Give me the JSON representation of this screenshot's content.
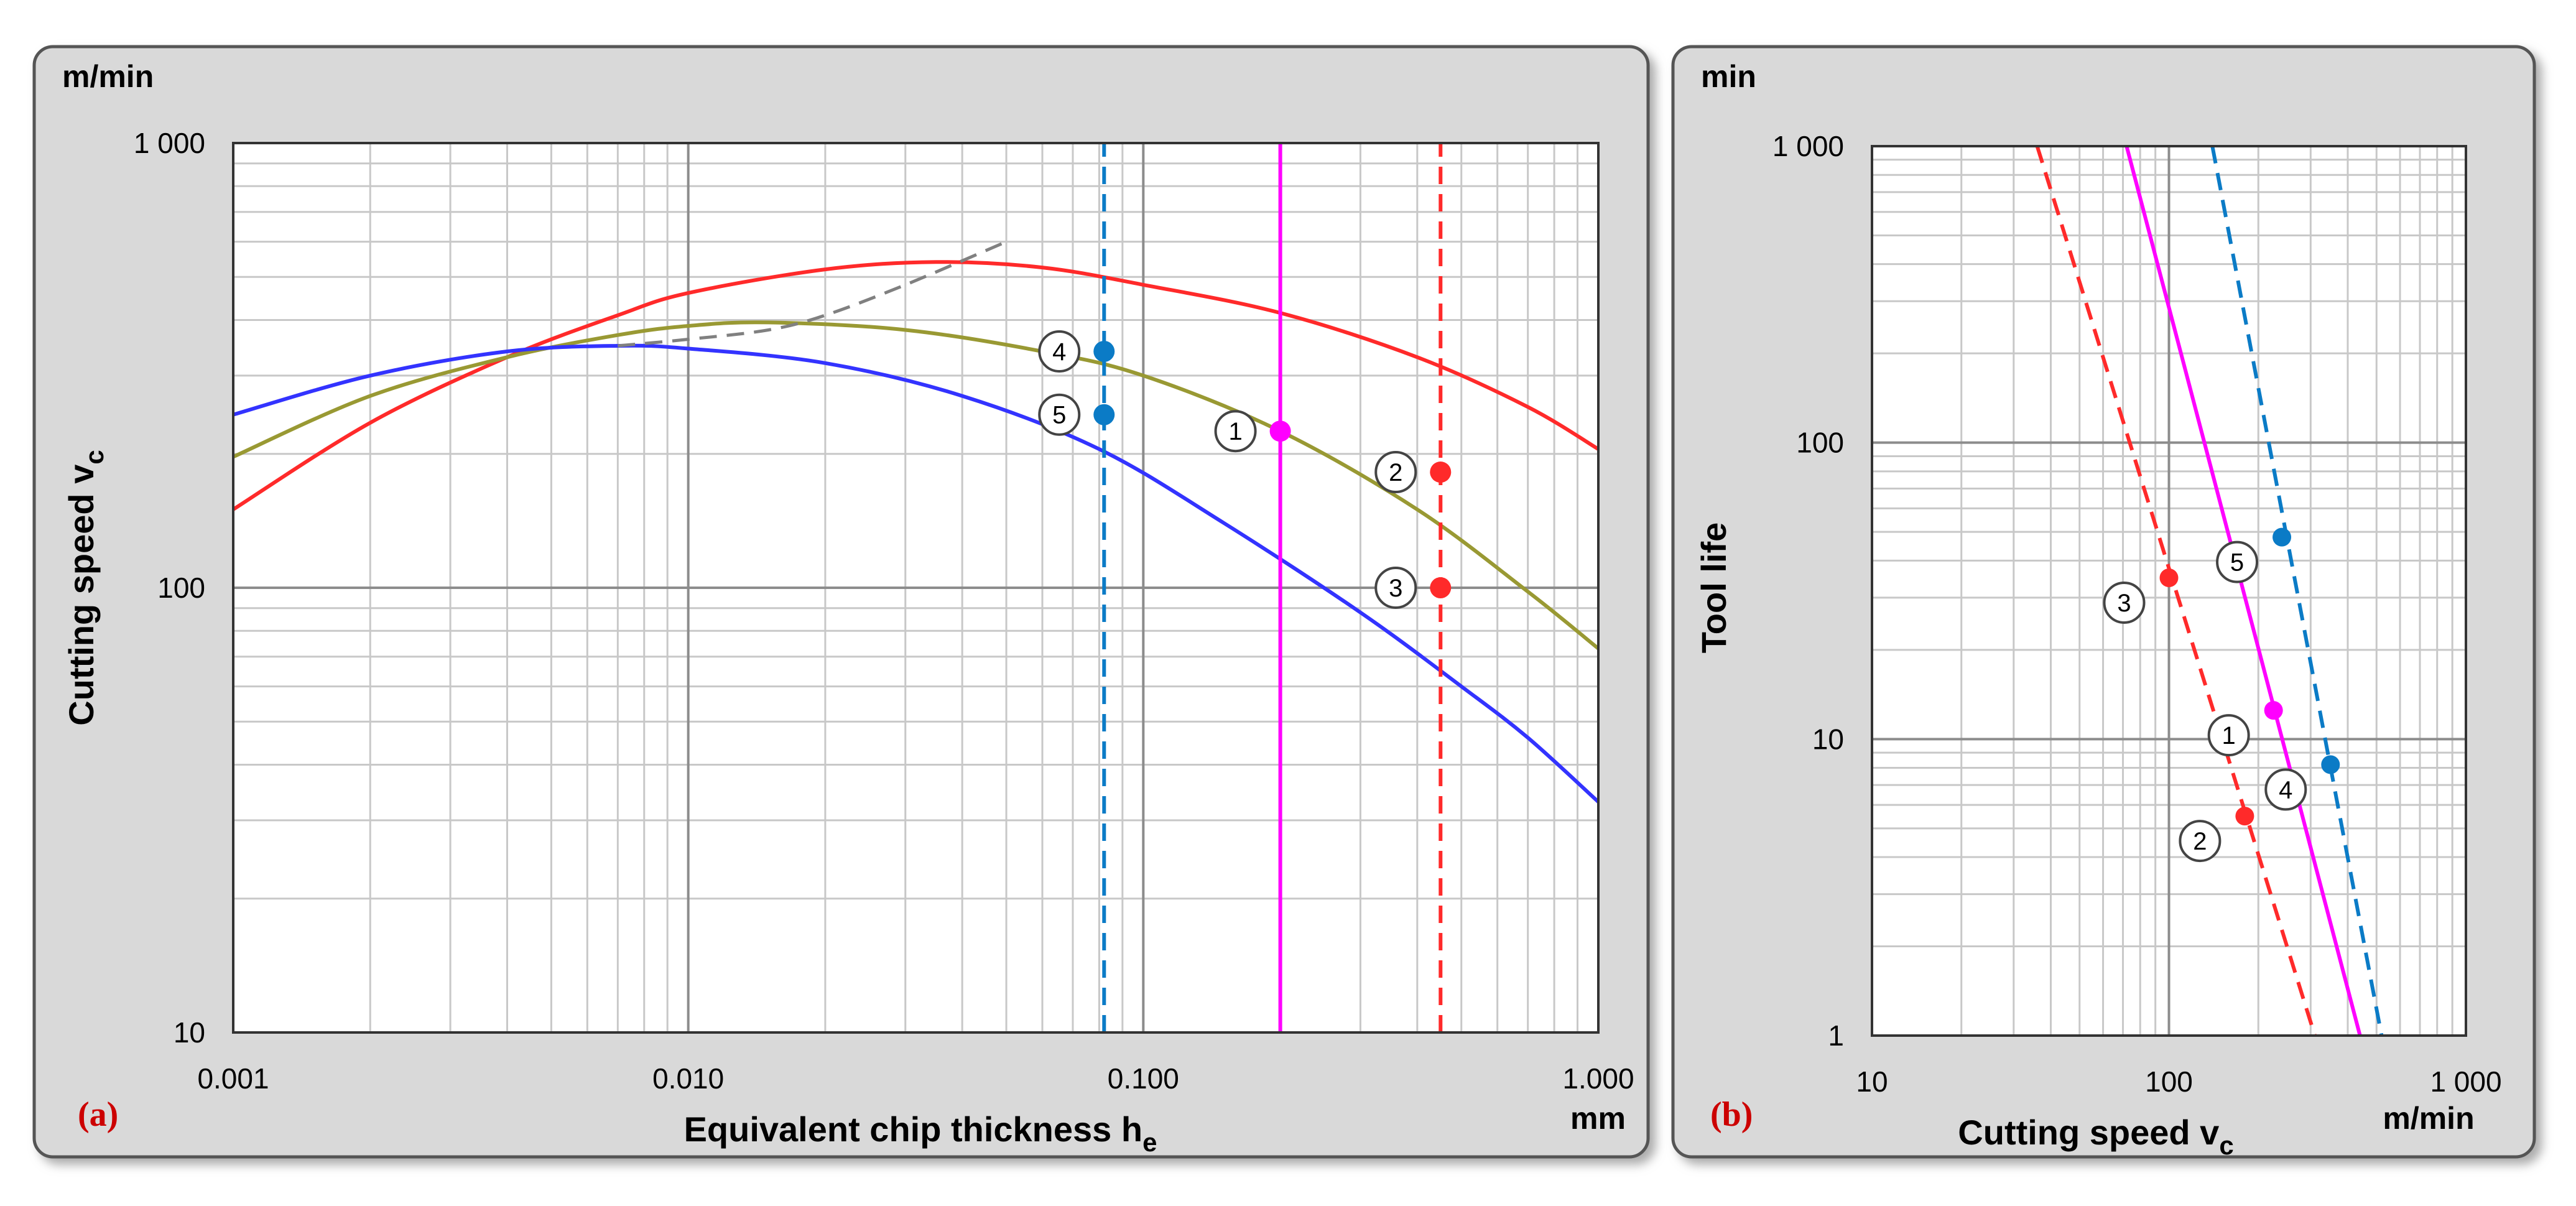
{
  "colors": {
    "panel_bg": "#d9d9d9",
    "plot_bg": "#ffffff",
    "red": "#ff2a2a",
    "olive": "#999933",
    "blue": "#3333ff",
    "magenta": "#ff00ff",
    "cyan_dashed": "#0b7bc6",
    "gray_dashed": "#808080",
    "panel_label": "#cc0000"
  },
  "chart_data": [
    {
      "type": "line",
      "panel_label": "(a)",
      "title": "",
      "xlabel_main": "Equivalent chip thickness h",
      "xlabel_sub": "e",
      "ylabel_main": "Cutting speed v",
      "ylabel_sub": "c",
      "x_unit": "mm",
      "y_unit": "m/min",
      "x_scale": "log",
      "y_scale": "log",
      "xlim": [
        0.001,
        1.0
      ],
      "ylim": [
        10,
        1000
      ],
      "grid": true,
      "x_ticks": [
        0.001,
        0.01,
        0.1,
        1.0
      ],
      "x_tick_labels": [
        "0.001",
        "0.010",
        "0.100",
        "1.000"
      ],
      "y_ticks": [
        10,
        100,
        1000
      ],
      "y_tick_labels": [
        "10",
        "100",
        "1 000"
      ],
      "series": [
        {
          "color": "red",
          "style": "solid",
          "points": [
            [
              0.001,
              150
            ],
            [
              0.002,
              235
            ],
            [
              0.004,
              330
            ],
            [
              0.007,
              410
            ],
            [
              0.01,
              460
            ],
            [
              0.02,
              520
            ],
            [
              0.035,
              540
            ],
            [
              0.06,
              525
            ],
            [
              0.1,
              480
            ],
            [
              0.2,
              415
            ],
            [
              0.4,
              330
            ],
            [
              0.7,
              255
            ],
            [
              1.0,
              205
            ]
          ]
        },
        {
          "color": "olive",
          "style": "solid",
          "points": [
            [
              0.001,
              197
            ],
            [
              0.002,
              270
            ],
            [
              0.004,
              330
            ],
            [
              0.007,
              370
            ],
            [
              0.01,
              388
            ],
            [
              0.015,
              395
            ],
            [
              0.03,
              380
            ],
            [
              0.06,
              340
            ],
            [
              0.1,
              300
            ],
            [
              0.2,
              225
            ],
            [
              0.4,
              150
            ],
            [
              0.7,
              98
            ],
            [
              1.0,
              73
            ]
          ]
        },
        {
          "color": "blue",
          "style": "solid",
          "points": [
            [
              0.001,
              245
            ],
            [
              0.002,
              300
            ],
            [
              0.004,
              340
            ],
            [
              0.007,
              350
            ],
            [
              0.01,
              345
            ],
            [
              0.02,
              320
            ],
            [
              0.04,
              270
            ],
            [
              0.08,
              205
            ],
            [
              0.15,
              140
            ],
            [
              0.3,
              88
            ],
            [
              0.5,
              60
            ],
            [
              0.7,
              46
            ],
            [
              1.0,
              33
            ]
          ]
        },
        {
          "color": "gray_dashed",
          "style": "dashed",
          "points": [
            [
              0.007,
              350
            ],
            [
              0.01,
              362
            ],
            [
              0.015,
              380
            ],
            [
              0.02,
              410
            ],
            [
              0.03,
              480
            ],
            [
              0.05,
              600
            ]
          ]
        },
        {
          "color": "cyan_dashed",
          "style": "dashed-vertical",
          "points": [
            [
              0.082,
              10
            ],
            [
              0.082,
              1000
            ]
          ]
        },
        {
          "color": "magenta",
          "style": "solid-vertical",
          "points": [
            [
              0.2,
              10
            ],
            [
              0.2,
              1000
            ]
          ]
        },
        {
          "color": "red",
          "style": "dashed-vertical",
          "points": [
            [
              0.45,
              10
            ],
            [
              0.45,
              1000
            ]
          ]
        }
      ],
      "markers": [
        {
          "label": "1",
          "x": 0.2,
          "y": 225,
          "color": "magenta",
          "label_side": "left"
        },
        {
          "label": "2",
          "x": 0.45,
          "y": 182,
          "color": "red",
          "label_side": "left"
        },
        {
          "label": "3",
          "x": 0.45,
          "y": 100,
          "color": "red",
          "label_side": "left"
        },
        {
          "label": "4",
          "x": 0.082,
          "y": 340,
          "color": "cyan_dashed",
          "label_side": "left"
        },
        {
          "label": "5",
          "x": 0.082,
          "y": 245,
          "color": "cyan_dashed",
          "label_side": "left"
        }
      ]
    },
    {
      "type": "line",
      "panel_label": "(b)",
      "title": "",
      "xlabel_main": "Cutting speed v",
      "xlabel_sub": "c",
      "ylabel_main": "Tool life",
      "ylabel_sub": "",
      "x_unit": "m/min",
      "y_unit": "min",
      "x_scale": "log",
      "y_scale": "log",
      "xlim": [
        10,
        1000
      ],
      "ylim": [
        1,
        1000
      ],
      "grid": true,
      "x_ticks": [
        10,
        100,
        1000
      ],
      "x_tick_labels": [
        "10",
        "100",
        "1 000"
      ],
      "y_ticks": [
        1,
        10,
        100,
        1000
      ],
      "y_tick_labels": [
        "1",
        "10",
        "100",
        "1 000"
      ],
      "series": [
        {
          "color": "red",
          "style": "dashed",
          "points": [
            [
              36,
              1000
            ],
            [
              310,
              1
            ]
          ]
        },
        {
          "color": "magenta",
          "style": "solid",
          "points": [
            [
              72,
              1000
            ],
            [
              440,
              1
            ]
          ]
        },
        {
          "color": "cyan_dashed",
          "style": "dashed",
          "points": [
            [
              140,
              1000
            ],
            [
              520,
              1
            ]
          ]
        }
      ],
      "markers": [
        {
          "label": "1",
          "x": 225,
          "y": 12.5,
          "color": "magenta",
          "label_side": "below-left"
        },
        {
          "label": "2",
          "x": 180,
          "y": 5.5,
          "color": "red",
          "label_side": "below-left"
        },
        {
          "label": "3",
          "x": 100,
          "y": 35,
          "color": "red",
          "label_side": "below-left"
        },
        {
          "label": "4",
          "x": 350,
          "y": 8.2,
          "color": "cyan_dashed",
          "label_side": "below-left"
        },
        {
          "label": "5",
          "x": 240,
          "y": 48,
          "color": "cyan_dashed",
          "label_side": "below-left"
        }
      ]
    }
  ]
}
